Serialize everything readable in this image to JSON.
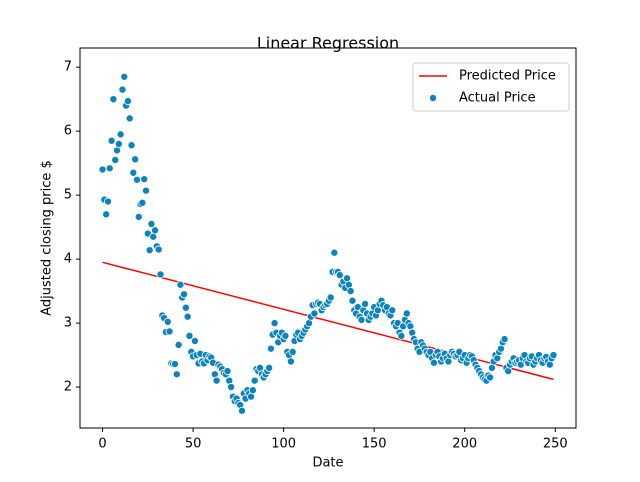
{
  "chart_data": {
    "type": "scatter",
    "title": "Linear Regression",
    "x_label": "Date",
    "y_label": "Adjusted closing price $",
    "xlim": [
      -12.45,
      261.45
    ],
    "ylim": [
      1.36,
      7.3
    ],
    "xticks": [
      0,
      50,
      100,
      150,
      200,
      250
    ],
    "yticks": [
      2,
      3,
      4,
      5,
      6,
      7
    ],
    "legend": "upper right",
    "series": [
      {
        "name": "Predicted Price",
        "type": "line",
        "color": "#ff0000",
        "x": [
          0,
          249
        ],
        "values": [
          3.95,
          2.12
        ]
      },
      {
        "name": "Actual Price",
        "type": "scatter",
        "color": "#0b83bf",
        "x": [
          0,
          1,
          2,
          3,
          4,
          5,
          6,
          7,
          8,
          9,
          10,
          11,
          12,
          13,
          14,
          15,
          16,
          17,
          18,
          19,
          20,
          21,
          22,
          23,
          24,
          25,
          26,
          27,
          28,
          29,
          30,
          31,
          32,
          33,
          34,
          35,
          36,
          37,
          38,
          39,
          40,
          41,
          42,
          43,
          44,
          45,
          46,
          47,
          48,
          49,
          50,
          51,
          52,
          53,
          54,
          55,
          56,
          57,
          58,
          59,
          60,
          61,
          62,
          63,
          64,
          65,
          66,
          67,
          68,
          69,
          70,
          71,
          72,
          73,
          74,
          75,
          76,
          77,
          78,
          79,
          80,
          81,
          82,
          83,
          84,
          85,
          86,
          87,
          88,
          89,
          90,
          91,
          92,
          93,
          94,
          95,
          96,
          97,
          98,
          99,
          100,
          101,
          102,
          103,
          104,
          105,
          106,
          107,
          108,
          109,
          110,
          111,
          112,
          113,
          114,
          115,
          116,
          117,
          118,
          119,
          120,
          121,
          122,
          123,
          124,
          125,
          126,
          127,
          128,
          129,
          130,
          131,
          132,
          133,
          134,
          135,
          136,
          137,
          138,
          139,
          140,
          141,
          142,
          143,
          144,
          145,
          146,
          147,
          148,
          149,
          150,
          151,
          152,
          153,
          154,
          155,
          156,
          157,
          158,
          159,
          160,
          161,
          162,
          163,
          164,
          165,
          166,
          167,
          168,
          169,
          170,
          171,
          172,
          173,
          174,
          175,
          176,
          177,
          178,
          179,
          180,
          181,
          182,
          183,
          184,
          185,
          186,
          187,
          188,
          189,
          190,
          191,
          192,
          193,
          194,
          195,
          196,
          197,
          198,
          199,
          200,
          201,
          202,
          203,
          204,
          205,
          206,
          207,
          208,
          209,
          210,
          211,
          212,
          213,
          214,
          215,
          216,
          217,
          218,
          219,
          220,
          221,
          222,
          223,
          224,
          225,
          226,
          227,
          228,
          229,
          230,
          231,
          232,
          233,
          234,
          235,
          236,
          237,
          238,
          239,
          240,
          241,
          242,
          243,
          244,
          245,
          246,
          247,
          248,
          249
        ],
        "values": [
          5.4,
          4.93,
          4.7,
          4.9,
          5.42,
          5.85,
          6.5,
          5.55,
          5.7,
          5.8,
          5.95,
          6.65,
          6.85,
          6.4,
          6.47,
          6.2,
          5.78,
          5.35,
          5.56,
          5.24,
          4.66,
          4.86,
          4.88,
          5.25,
          5.07,
          4.4,
          4.14,
          4.55,
          4.35,
          4.45,
          4.2,
          4.15,
          3.76,
          3.12,
          3.08,
          2.86,
          3.02,
          2.87,
          2.37,
          2.36,
          2.36,
          2.2,
          2.66,
          3.6,
          3.4,
          3.45,
          3.24,
          3.1,
          2.8,
          2.55,
          2.48,
          2.72,
          2.5,
          2.37,
          2.52,
          2.4,
          2.37,
          2.5,
          2.42,
          2.48,
          2.46,
          2.38,
          2.2,
          2.1,
          2.35,
          2.32,
          2.28,
          2.22,
          2.2,
          2.25,
          2.1,
          2.0,
          1.85,
          1.78,
          1.82,
          1.75,
          1.72,
          1.63,
          1.9,
          1.82,
          1.95,
          1.9,
          1.85,
          1.95,
          2.1,
          2.28,
          2.25,
          2.3,
          2.2,
          2.15,
          2.2,
          2.25,
          2.3,
          2.6,
          2.82,
          3.0,
          2.85,
          2.7,
          2.8,
          2.85,
          2.75,
          2.8,
          2.55,
          2.5,
          2.4,
          2.55,
          2.72,
          2.82,
          2.85,
          2.75,
          2.8,
          2.85,
          2.9,
          2.95,
          3.0,
          3.1,
          3.28,
          3.15,
          3.3,
          3.32,
          3.3,
          3.2,
          3.25,
          3.28,
          3.3,
          3.35,
          3.4,
          3.8,
          4.1,
          3.8,
          3.8,
          3.75,
          3.6,
          3.65,
          3.55,
          3.7,
          3.6,
          3.5,
          3.35,
          3.2,
          3.15,
          3.25,
          3.1,
          3.05,
          3.2,
          3.3,
          3.15,
          3.05,
          3.1,
          3.15,
          3.25,
          3.12,
          3.2,
          3.3,
          3.35,
          3.28,
          3.2,
          3.25,
          3.15,
          3.12,
          3.2,
          3.0,
          2.95,
          3.0,
          2.85,
          2.8,
          2.95,
          3.05,
          3.15,
          3.0,
          2.95,
          2.85,
          2.75,
          2.7,
          2.6,
          2.55,
          2.7,
          2.65,
          2.6,
          2.55,
          2.5,
          2.55,
          2.45,
          2.38,
          2.5,
          2.55,
          2.48,
          2.4,
          2.45,
          2.52,
          2.45,
          2.4,
          2.5,
          2.55,
          2.52,
          2.48,
          2.5,
          2.55,
          2.42,
          2.45,
          2.5,
          2.38,
          2.45,
          2.5,
          2.48,
          2.42,
          2.35,
          2.3,
          2.25,
          2.2,
          2.15,
          2.12,
          2.1,
          2.18,
          2.15,
          2.3,
          2.4,
          2.5,
          2.45,
          2.55,
          2.6,
          2.7,
          2.75,
          2.3,
          2.25,
          2.35,
          2.4,
          2.45,
          2.38,
          2.4,
          2.42,
          2.35,
          2.45,
          2.5,
          2.4,
          2.38,
          2.45,
          2.48,
          2.35,
          2.4,
          2.45,
          2.5,
          2.42,
          2.38,
          2.45,
          2.47,
          2.4,
          2.35,
          2.45,
          2.5
        ]
      }
    ]
  }
}
